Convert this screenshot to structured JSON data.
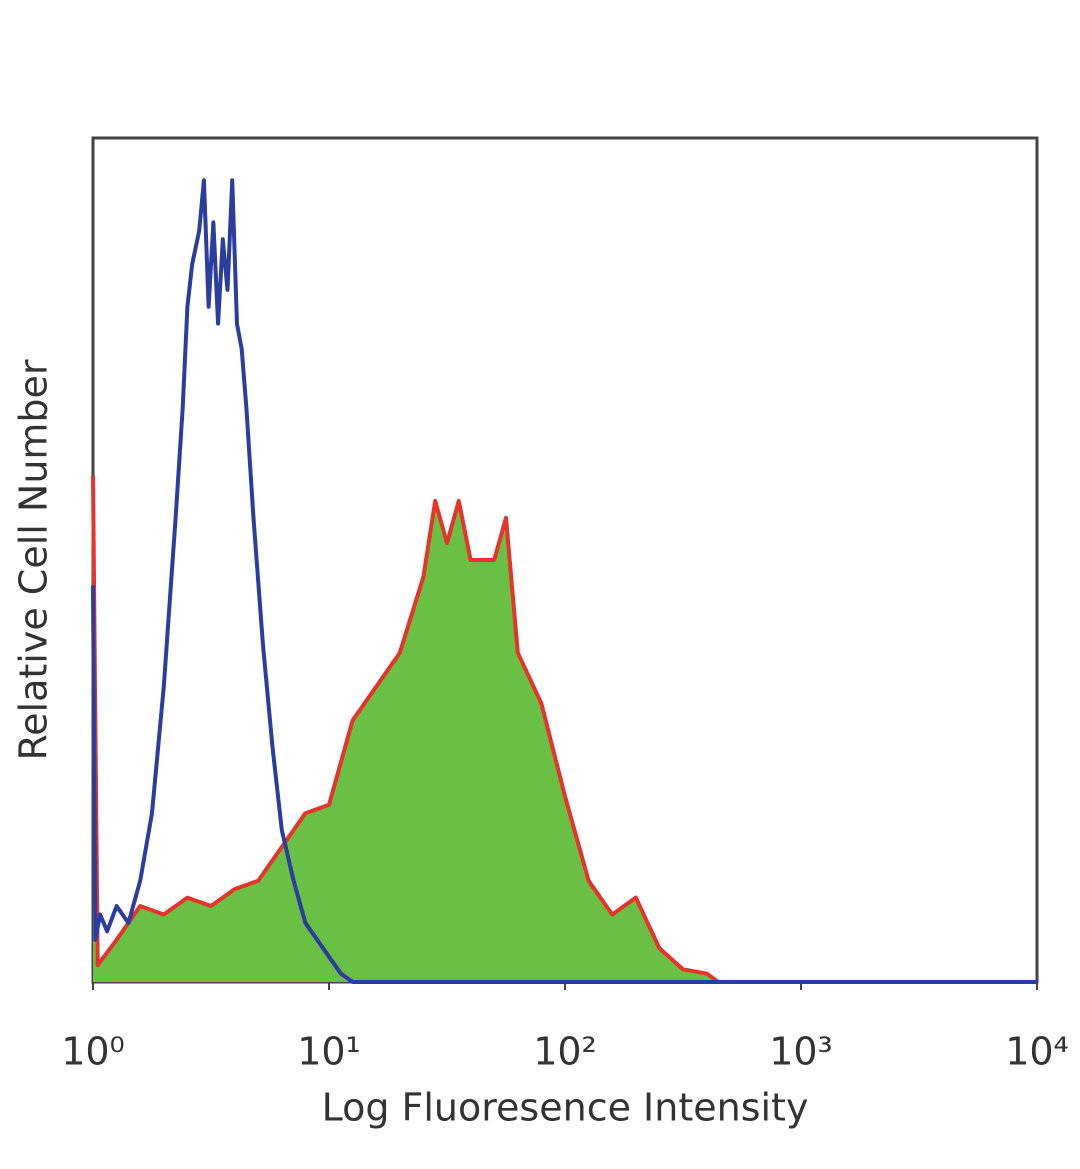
{
  "chart_data": {
    "type": "histogram-overlay",
    "xlabel": "Log Fluoresence Intensity",
    "ylabel": "Relative Cell Number",
    "xscale": "log",
    "xlim": [
      1,
      10000
    ],
    "xticks": [
      {
        "value": 1,
        "label": "10⁰"
      },
      {
        "value": 10,
        "label": "10¹"
      },
      {
        "value": 100,
        "label": "10²"
      },
      {
        "value": 1000,
        "label": "10³"
      },
      {
        "value": 10000,
        "label": "10⁴"
      }
    ],
    "ylim": [
      0,
      100
    ],
    "series": [
      {
        "color": "#e8332a",
        "fill": "#6abf45",
        "x": [
          1,
          1.047,
          1.259,
          1.585,
          1.995,
          2.512,
          3.162,
          3.981,
          5.012,
          6.31,
          7.943,
          10,
          12.59,
          15.85,
          19.95,
          25.12,
          28.18,
          31.62,
          35.48,
          39.81,
          50.12,
          56.23,
          63.1,
          79.43,
          100,
          125.9,
          158.5,
          199.5,
          251.2,
          316.2,
          398.1,
          446.7,
          10000
        ],
        "values": [
          60,
          2,
          5,
          9,
          8,
          10,
          9,
          11,
          12,
          16,
          20,
          21,
          31,
          35,
          39,
          48,
          57,
          52,
          57,
          50,
          50,
          55,
          39,
          33,
          22,
          12,
          8,
          10,
          4,
          1.5,
          1,
          0,
          0
        ]
      },
      {
        "color": "#2b3d9e",
        "x": [
          1,
          1.023,
          1.072,
          1.148,
          1.259,
          1.413,
          1.585,
          1.778,
          1.995,
          2.239,
          2.399,
          2.512,
          2.63,
          2.818,
          2.951,
          3.09,
          3.236,
          3.388,
          3.548,
          3.715,
          3.89,
          4.074,
          4.266,
          4.467,
          4.786,
          5.248,
          5.754,
          6.31,
          7.079,
          7.943,
          8.913,
          10,
          11.22,
          12.59,
          10000
        ],
        "values": [
          47,
          5,
          8,
          6,
          9,
          7,
          12,
          20,
          35,
          55,
          68,
          80,
          85,
          89,
          95,
          80,
          90,
          78,
          88,
          82,
          95,
          78,
          75,
          68,
          55,
          40,
          28,
          18,
          12,
          7,
          5,
          3,
          1,
          0,
          0
        ]
      }
    ]
  }
}
